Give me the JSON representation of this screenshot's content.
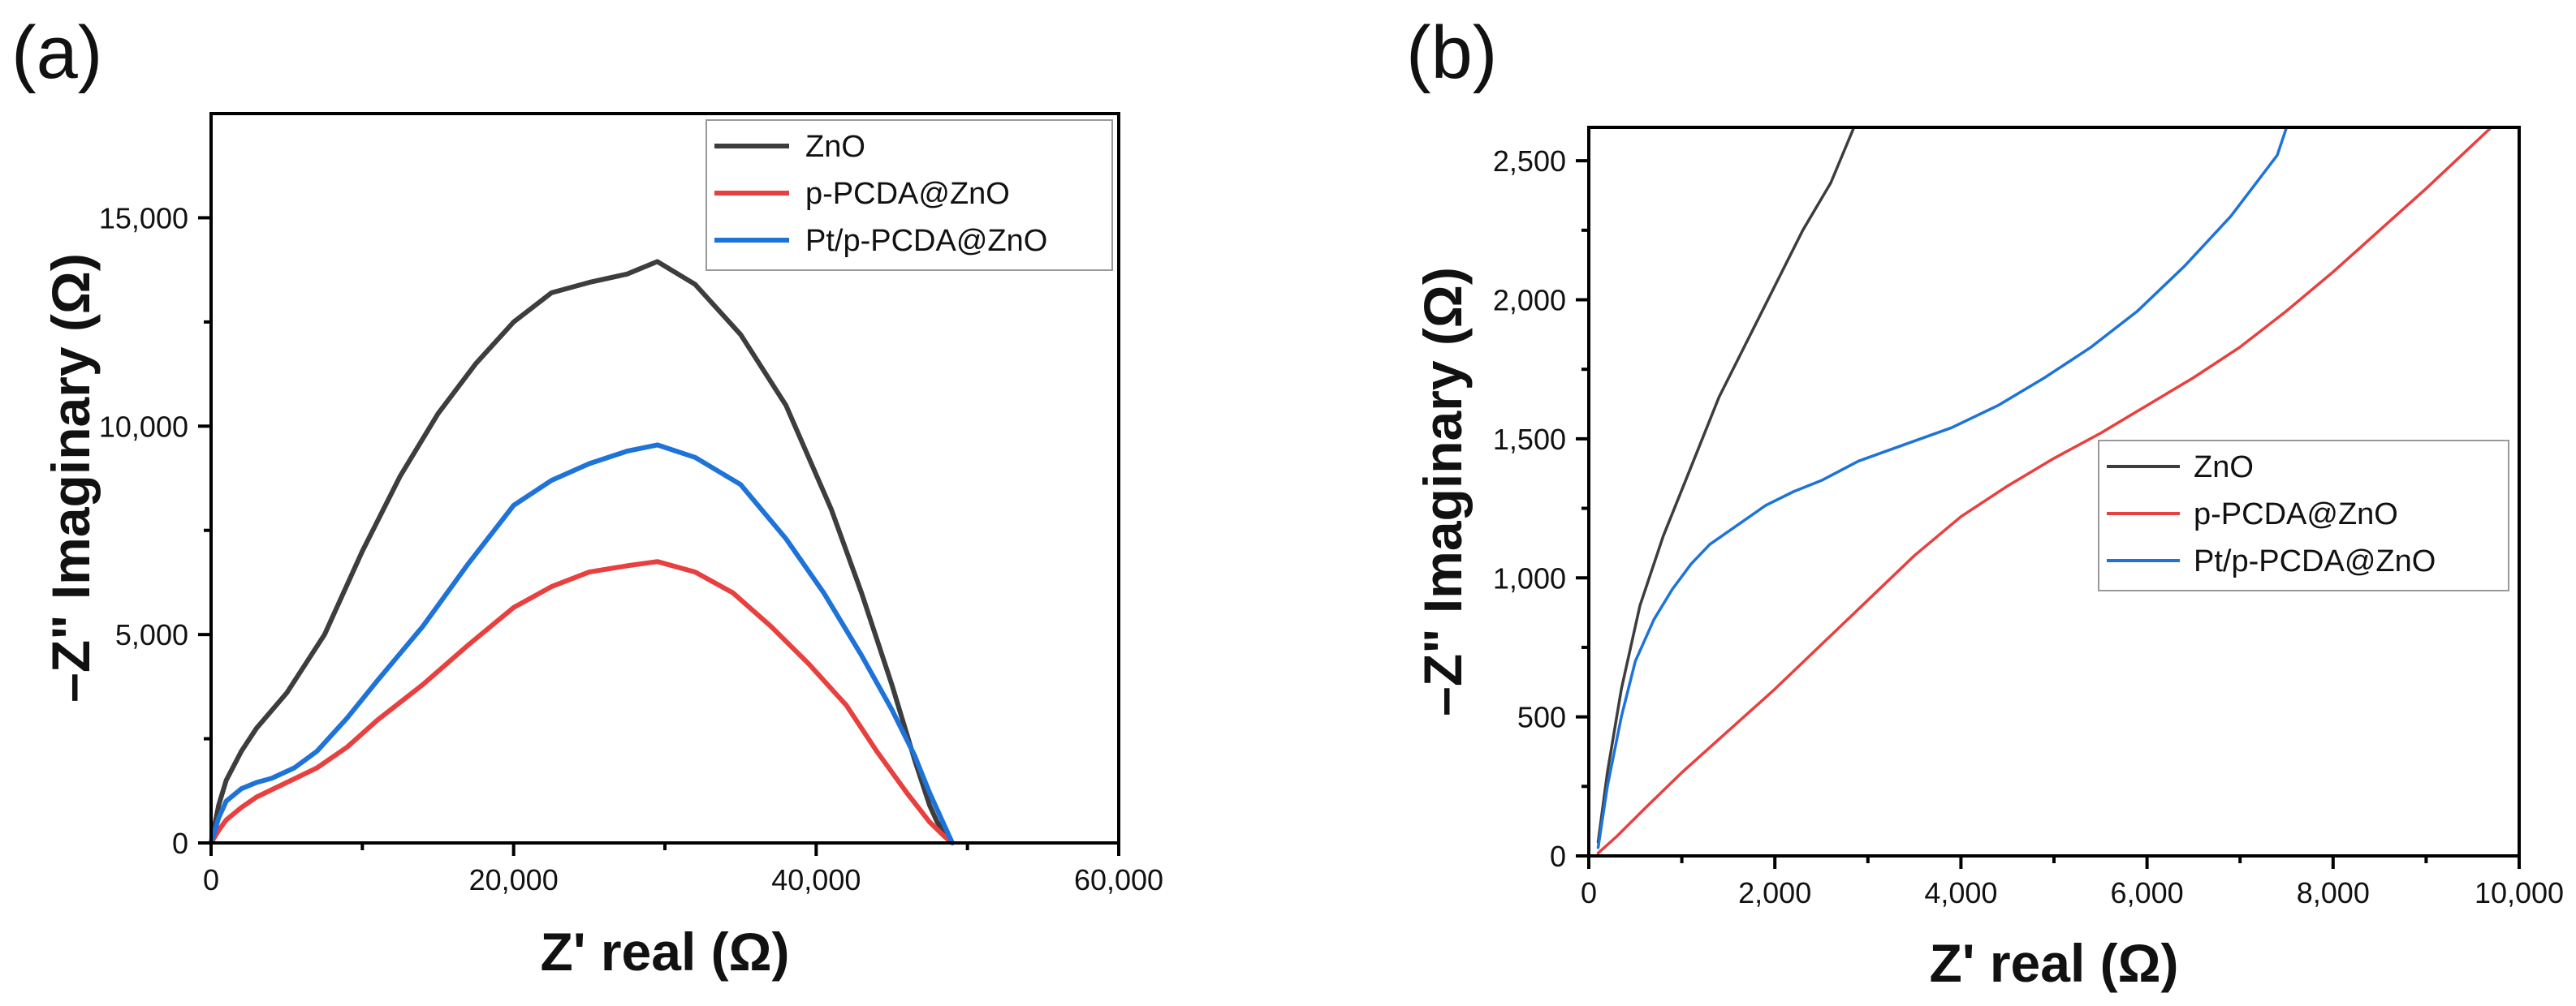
{
  "chart_data": [
    {
      "type": "line",
      "panel_label": "(a)",
      "title": "",
      "xlabel": "Z' real (Ω)",
      "ylabel": "–Z\" Imaginary (Ω)",
      "xlim": [
        0,
        60000
      ],
      "ylim": [
        0,
        17500
      ],
      "xticks": [
        0,
        20000,
        40000,
        60000
      ],
      "xtick_labels": [
        "0",
        "20,000",
        "40,000",
        "60,000"
      ],
      "yticks": [
        0,
        5000,
        10000,
        15000
      ],
      "ytick_labels": [
        "0",
        "5,000",
        "10,000",
        "15,000"
      ],
      "grid": false,
      "legend_position": "top-right",
      "series": [
        {
          "name": "ZnO",
          "color": "#3d3d3d",
          "x": [
            0,
            500,
            1000,
            2000,
            3000,
            5000,
            7500,
            10000,
            12500,
            15000,
            17500,
            20000,
            22500,
            25000,
            27500,
            29500,
            32000,
            35000,
            38000,
            41000,
            43000,
            45000,
            46500,
            47500,
            48000,
            48500,
            49000
          ],
          "y": [
            0,
            900,
            1500,
            2200,
            2750,
            3600,
            5000,
            7000,
            8800,
            10300,
            11500,
            12500,
            13200,
            13450,
            13650,
            13950,
            13400,
            12200,
            10500,
            8000,
            6000,
            3800,
            2000,
            900,
            500,
            250,
            0
          ]
        },
        {
          "name": "p-PCDA@ZnO",
          "color": "#e8403e",
          "x": [
            0,
            500,
            1000,
            2000,
            3000,
            5000,
            7000,
            9000,
            11000,
            14000,
            17000,
            20000,
            22500,
            25000,
            27500,
            29500,
            32000,
            34500,
            37000,
            39500,
            42000,
            44000,
            46000,
            47500,
            48500,
            49000
          ],
          "y": [
            0,
            300,
            550,
            850,
            1100,
            1450,
            1800,
            2300,
            2950,
            3800,
            4750,
            5650,
            6150,
            6500,
            6650,
            6750,
            6500,
            6000,
            5200,
            4300,
            3300,
            2200,
            1200,
            500,
            150,
            0
          ]
        },
        {
          "name": "Pt/p-PCDA@ZnO",
          "color": "#1e73d8",
          "x": [
            0,
            500,
            1000,
            2000,
            3000,
            4000,
            5500,
            7000,
            9000,
            11000,
            14000,
            17000,
            20000,
            22500,
            25000,
            27500,
            29500,
            32000,
            35000,
            38000,
            40500,
            43000,
            45000,
            46500,
            47500,
            48500,
            49000
          ],
          "y": [
            0,
            600,
            1000,
            1300,
            1450,
            1550,
            1800,
            2200,
            3000,
            3900,
            5200,
            6700,
            8100,
            8700,
            9100,
            9400,
            9550,
            9250,
            8600,
            7300,
            6000,
            4500,
            3200,
            2100,
            1200,
            400,
            0
          ]
        }
      ]
    },
    {
      "type": "line",
      "panel_label": "(b)",
      "title": "",
      "xlabel": "Z' real (Ω)",
      "ylabel": "–Z\" Imaginary (Ω)",
      "xlim": [
        0,
        10000
      ],
      "ylim": [
        0,
        2620
      ],
      "xticks": [
        0,
        2000,
        4000,
        6000,
        8000,
        10000
      ],
      "xtick_labels": [
        "0",
        "2,000",
        "4,000",
        "6,000",
        "8,000",
        "10,000"
      ],
      "yticks": [
        0,
        500,
        1000,
        1500,
        2000,
        2500
      ],
      "ytick_labels": [
        "0",
        "500",
        "1,000",
        "1,500",
        "2,000",
        "2,500"
      ],
      "grid": false,
      "legend_position": "middle-right",
      "series": [
        {
          "name": "ZnO",
          "color": "#3d3d3d",
          "x": [
            100,
            200,
            350,
            550,
            800,
            1100,
            1400,
            1700,
            2000,
            2300,
            2600,
            2850
          ],
          "y": [
            50,
            300,
            600,
            900,
            1150,
            1400,
            1650,
            1850,
            2050,
            2250,
            2420,
            2620
          ]
        },
        {
          "name": "p-PCDA@ZnO",
          "color": "#e8403e",
          "x": [
            100,
            300,
            600,
            1000,
            1500,
            2000,
            2500,
            3000,
            3500,
            4000,
            4500,
            5000,
            5500,
            6000,
            6500,
            7000,
            7500,
            8000,
            8500,
            9000,
            9700
          ],
          "y": [
            10,
            70,
            170,
            300,
            450,
            600,
            760,
            920,
            1080,
            1220,
            1330,
            1430,
            1520,
            1620,
            1720,
            1830,
            1960,
            2100,
            2250,
            2400,
            2620
          ]
        },
        {
          "name": "Pt/p-PCDA@ZnO",
          "color": "#1e73d8",
          "x": [
            100,
            200,
            350,
            500,
            700,
            900,
            1100,
            1300,
            1600,
            1900,
            2200,
            2500,
            2900,
            3400,
            3900,
            4400,
            4900,
            5400,
            5900,
            6400,
            6900,
            7400,
            7500
          ],
          "y": [
            30,
            250,
            500,
            700,
            850,
            960,
            1050,
            1120,
            1190,
            1260,
            1310,
            1350,
            1420,
            1480,
            1540,
            1620,
            1720,
            1830,
            1960,
            2120,
            2300,
            2520,
            2620
          ]
        }
      ]
    }
  ]
}
